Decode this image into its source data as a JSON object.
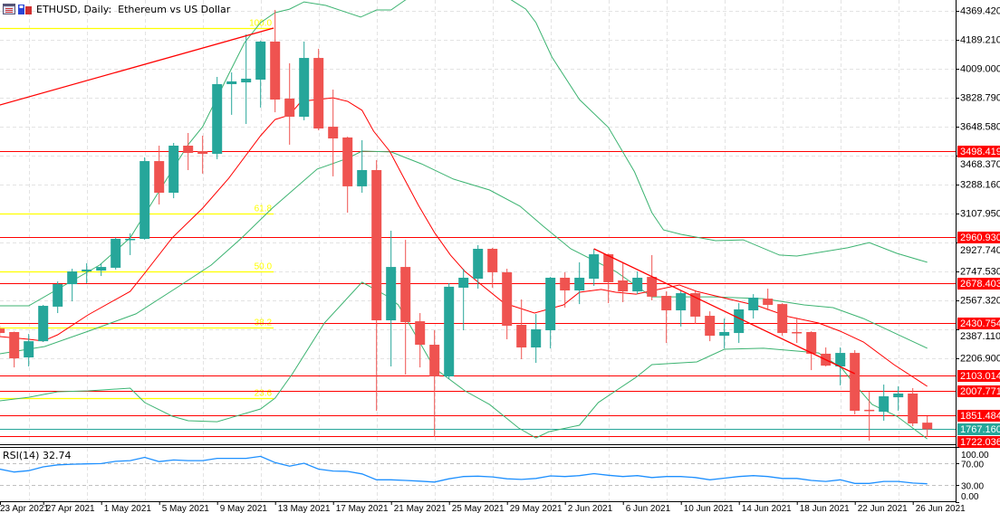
{
  "header": {
    "symbol_title": "ETHUSD, Daily:  Ethereum vs US Dollar",
    "icons": [
      "chart-window-icon",
      "save-icon"
    ]
  },
  "colors": {
    "bull": "#26a69a",
    "bear": "#ef5350",
    "bands": "#3cb371",
    "ma": "#ff0000",
    "fib": "#ffff00",
    "levels": "#ff0000",
    "current": "#26a69a",
    "rsi": "#1e90ff",
    "grid": "#e3e3e3"
  },
  "chart_data": {
    "type": "candlestick",
    "symbol": "ETHUSD",
    "timeframe": "Daily",
    "start_date": "2021-04-23",
    "interval": "1D",
    "ohlc": [
      [
        2394,
        2411,
        2344,
        2366
      ],
      [
        2372,
        2375,
        2152,
        2208
      ],
      [
        2214,
        2360,
        2158,
        2315
      ],
      [
        2315,
        2541,
        2310,
        2535
      ],
      [
        2530,
        2687,
        2490,
        2670
      ],
      [
        2670,
        2766,
        2563,
        2749
      ],
      [
        2749,
        2800,
        2676,
        2761
      ],
      [
        2755,
        2800,
        2721,
        2777
      ],
      [
        2772,
        2960,
        2761,
        2952
      ],
      [
        2946,
        2986,
        2851,
        2952
      ],
      [
        2952,
        3459,
        2946,
        3436
      ],
      [
        3436,
        3532,
        3166,
        3239
      ],
      [
        3239,
        3549,
        3205,
        3532
      ],
      [
        3532,
        3611,
        3380,
        3487
      ],
      [
        3498,
        3594,
        3358,
        3481
      ],
      [
        3481,
        3960,
        3448,
        3915
      ],
      [
        3915,
        3988,
        3724,
        3932
      ],
      [
        3926,
        4225,
        3667,
        3949
      ],
      [
        3943,
        4185,
        3769,
        4180
      ],
      [
        4180,
        4377,
        3740,
        3819
      ],
      [
        3825,
        4045,
        3538,
        3712
      ],
      [
        3712,
        4180,
        3690,
        4078
      ],
      [
        4078,
        4135,
        3628,
        3639
      ],
      [
        3650,
        3881,
        3341,
        3577
      ],
      [
        3583,
        3588,
        3115,
        3279
      ],
      [
        3279,
        3566,
        3239,
        3380
      ],
      [
        3380,
        3442,
        1882,
        2445
      ],
      [
        2445,
        3003,
        2158,
        2777
      ],
      [
        2777,
        2946,
        2107,
        2434
      ],
      [
        2439,
        2490,
        2152,
        2293
      ],
      [
        2293,
        2383,
        1719,
        2096
      ],
      [
        2096,
        2676,
        2079,
        2654
      ],
      [
        2648,
        2766,
        2383,
        2710
      ],
      [
        2704,
        2913,
        2642,
        2890
      ],
      [
        2890,
        2896,
        2648,
        2744
      ],
      [
        2744,
        2766,
        2327,
        2411
      ],
      [
        2417,
        2575,
        2203,
        2276
      ],
      [
        2276,
        2484,
        2180,
        2389
      ],
      [
        2383,
        2715,
        2270,
        2710
      ],
      [
        2710,
        2744,
        2524,
        2631
      ],
      [
        2631,
        2806,
        2546,
        2710
      ],
      [
        2704,
        2890,
        2659,
        2856
      ],
      [
        2856,
        2860,
        2552,
        2682
      ],
      [
        2693,
        2806,
        2558,
        2625
      ],
      [
        2625,
        2749,
        2608,
        2710
      ],
      [
        2715,
        2851,
        2569,
        2592
      ],
      [
        2597,
        2625,
        2304,
        2507
      ],
      [
        2507,
        2631,
        2406,
        2614
      ],
      [
        2614,
        2625,
        2422,
        2468
      ],
      [
        2473,
        2501,
        2315,
        2349
      ],
      [
        2349,
        2456,
        2270,
        2372
      ],
      [
        2366,
        2552,
        2304,
        2513
      ],
      [
        2507,
        2608,
        2456,
        2586
      ],
      [
        2580,
        2642,
        2507,
        2541
      ],
      [
        2546,
        2552,
        2349,
        2366
      ],
      [
        2372,
        2462,
        2304,
        2366
      ],
      [
        2372,
        2377,
        2135,
        2237
      ],
      [
        2237,
        2276,
        2158,
        2163
      ],
      [
        2158,
        2276,
        2040,
        2242
      ],
      [
        2242,
        2259,
        1859,
        1882
      ],
      [
        1888,
        2000,
        1696,
        1882
      ],
      [
        1876,
        2045,
        1820,
        1972
      ],
      [
        1966,
        2034,
        1882,
        1989
      ],
      [
        1989,
        2023,
        1786,
        1803
      ],
      [
        1808,
        1848,
        1719,
        1767.16
      ]
    ],
    "y_ticks": [
      "4369.420",
      "4189.210",
      "4009.000",
      "3828.790",
      "3648.580",
      "3468.370",
      "3288.160",
      "3107.950",
      "2927.740",
      "2747.530",
      "2567.320",
      "2387.110",
      "2206.900"
    ],
    "x_labels": [
      {
        "bar": 0,
        "text": "23 Apr 2021"
      },
      {
        "bar": 4,
        "text": "27 Apr 2021"
      },
      {
        "bar": 8,
        "text": "1 May 2021"
      },
      {
        "bar": 12,
        "text": "5 May 2021"
      },
      {
        "bar": 16,
        "text": "9 May 2021"
      },
      {
        "bar": 20,
        "text": "13 May 2021"
      },
      {
        "bar": 24,
        "text": "17 May 2021"
      },
      {
        "bar": 28,
        "text": "21 May 2021"
      },
      {
        "bar": 32,
        "text": "25 May 2021"
      },
      {
        "bar": 36,
        "text": "29 May 2021"
      },
      {
        "bar": 40,
        "text": "2 Jun 2021"
      },
      {
        "bar": 44,
        "text": "6 Jun 2021"
      },
      {
        "bar": 48,
        "text": "10 Jun 2021"
      },
      {
        "bar": 52,
        "text": "14 Jun 2021"
      },
      {
        "bar": 56,
        "text": "18 Jun 2021"
      },
      {
        "bar": 60,
        "text": "22 Jun 2021"
      },
      {
        "bar": 64,
        "text": "26 Jun 2021"
      }
    ],
    "levels": [
      {
        "value": 3498.419,
        "label": "3498.419"
      },
      {
        "value": 2960.93,
        "label": "2960.930"
      },
      {
        "value": 2678.403,
        "label": "2678.403"
      },
      {
        "value": 2430.754,
        "label": "2430.754"
      },
      {
        "value": 2103.014,
        "label": "2103.014"
      },
      {
        "value": 2007.771,
        "label": "2007.771"
      },
      {
        "value": 1851.484,
        "label": "1851.484"
      },
      {
        "value": 1722.036,
        "label": "1722.036"
      }
    ],
    "current_price": {
      "value": 1767.16,
      "label": "1767.160"
    },
    "fibonacci": {
      "end_bar": 18.9,
      "levels": [
        {
          "value": 4264,
          "label": "100.0"
        },
        {
          "value": 3110,
          "label": "61.8"
        },
        {
          "value": 2749,
          "label": "50.0"
        },
        {
          "value": 2400,
          "label": "38.2"
        },
        {
          "value": 1961,
          "label": "23.6"
        }
      ]
    },
    "trendlines": [
      {
        "from": [
          0,
          3785
        ],
        "to": [
          18.9,
          4264
        ]
      },
      {
        "from": [
          41,
          2890
        ],
        "to": [
          59,
          2113
        ]
      }
    ],
    "bollinger_upper": [
      [
        0,
        2535
      ],
      [
        2,
        2535
      ],
      [
        6.9,
        2789
      ],
      [
        9,
        2958
      ],
      [
        10,
        3104
      ],
      [
        13,
        3538
      ],
      [
        14,
        3650
      ],
      [
        15.8,
        3977
      ],
      [
        16.9,
        4174
      ],
      [
        18,
        4298
      ],
      [
        19,
        4360
      ],
      [
        20,
        4382
      ],
      [
        21,
        4427
      ],
      [
        22.5,
        4405
      ],
      [
        24.9,
        4332
      ],
      [
        26,
        4377
      ],
      [
        27,
        4377
      ],
      [
        28,
        4439
      ],
      [
        30,
        4520
      ],
      [
        32,
        4540
      ],
      [
        34,
        4510
      ],
      [
        35.3,
        4439
      ],
      [
        36.3,
        4382
      ],
      [
        37,
        4298
      ],
      [
        38.1,
        4084
      ],
      [
        40,
        3819
      ],
      [
        42,
        3645
      ],
      [
        43.8,
        3369
      ],
      [
        45,
        3115
      ],
      [
        45.8,
        3008
      ],
      [
        47,
        2980
      ],
      [
        49.4,
        2941
      ],
      [
        51.3,
        2946
      ],
      [
        53.8,
        2851
      ],
      [
        55,
        2845
      ],
      [
        58.5,
        2896
      ],
      [
        60,
        2929
      ],
      [
        61.9,
        2862
      ],
      [
        64,
        2806
      ]
    ],
    "bollinger_middle": [
      [
        0,
        2237
      ],
      [
        3.1,
        2282
      ],
      [
        6.3,
        2383
      ],
      [
        9.4,
        2485
      ],
      [
        12.5,
        2665
      ],
      [
        14.6,
        2789
      ],
      [
        16.7,
        2958
      ],
      [
        18.8,
        3143
      ],
      [
        21.9,
        3386
      ],
      [
        24,
        3453
      ],
      [
        25,
        3498
      ],
      [
        27,
        3493
      ],
      [
        29.1,
        3419
      ],
      [
        31.3,
        3324
      ],
      [
        33.8,
        3256
      ],
      [
        35.9,
        3155
      ],
      [
        37.5,
        3031
      ],
      [
        39.4,
        2890
      ],
      [
        42.5,
        2749
      ],
      [
        45,
        2591
      ],
      [
        49.2,
        2591
      ],
      [
        52.7,
        2580
      ],
      [
        55.5,
        2541
      ],
      [
        57.5,
        2524
      ],
      [
        59.6,
        2456
      ],
      [
        64,
        2271
      ]
    ],
    "bollinger_lower": [
      [
        0,
        1944
      ],
      [
        2,
        1966
      ],
      [
        4,
        2000
      ],
      [
        6.1,
        2006
      ],
      [
        9,
        2023
      ],
      [
        10,
        1933
      ],
      [
        11.9,
        1848
      ],
      [
        13,
        1820
      ],
      [
        15,
        1814
      ],
      [
        18,
        1893
      ],
      [
        19,
        1961
      ],
      [
        20.2,
        2113
      ],
      [
        22.4,
        2428
      ],
      [
        25,
        2682
      ],
      [
        26.7,
        2597
      ],
      [
        27.5,
        2541
      ],
      [
        30,
        2147
      ],
      [
        32.1,
        2006
      ],
      [
        33.8,
        1921
      ],
      [
        35.8,
        1775
      ],
      [
        37,
        1713
      ],
      [
        37.9,
        1752
      ],
      [
        40,
        1792
      ],
      [
        41.3,
        1933
      ],
      [
        42.5,
        2006
      ],
      [
        43.9,
        2090
      ],
      [
        45,
        2169
      ],
      [
        48.1,
        2186
      ],
      [
        50,
        2265
      ],
      [
        52.7,
        2271
      ],
      [
        56.5,
        2242
      ],
      [
        58.1,
        2147
      ],
      [
        58.9,
        2056
      ],
      [
        60.2,
        1921
      ],
      [
        61.9,
        1848
      ],
      [
        64,
        1707
      ]
    ],
    "moving_average": [
      [
        0,
        2344
      ],
      [
        2,
        2327
      ],
      [
        3,
        2316
      ],
      [
        4,
        2355
      ],
      [
        6.1,
        2479
      ],
      [
        9,
        2625
      ],
      [
        10,
        2738
      ],
      [
        11.9,
        2958
      ],
      [
        14,
        3143
      ],
      [
        15.8,
        3329
      ],
      [
        18,
        3594
      ],
      [
        19,
        3695
      ],
      [
        20,
        3723
      ],
      [
        20.8,
        3808
      ],
      [
        23,
        3830
      ],
      [
        24,
        3808
      ],
      [
        25,
        3752
      ],
      [
        25.8,
        3622
      ],
      [
        26.9,
        3498
      ],
      [
        27.9,
        3329
      ],
      [
        28.9,
        3160
      ],
      [
        30,
        2991
      ],
      [
        31.1,
        2851
      ],
      [
        32.1,
        2749
      ],
      [
        34.8,
        2552
      ],
      [
        36.9,
        2490
      ],
      [
        38.9,
        2541
      ],
      [
        40,
        2620
      ],
      [
        41.5,
        2637
      ],
      [
        42.5,
        2620
      ],
      [
        43.9,
        2608
      ],
      [
        46.9,
        2665
      ],
      [
        48.1,
        2625
      ],
      [
        50.2,
        2580
      ],
      [
        52.3,
        2535
      ],
      [
        54.4,
        2468
      ],
      [
        56.5,
        2428
      ],
      [
        58,
        2377
      ],
      [
        59.6,
        2310
      ],
      [
        61.7,
        2169
      ],
      [
        64,
        2034
      ]
    ]
  },
  "rsi": {
    "label": "RSI(14) 32.74",
    "period": 14,
    "current": 32.74,
    "levels": [
      70,
      30
    ],
    "ticks": [
      "100.00",
      "70.00",
      "30.00",
      "0.00"
    ],
    "values": [
      59.4,
      54.1,
      56.5,
      63.5,
      67,
      68.2,
      68.8,
      69.4,
      73.5,
      74.7,
      80.6,
      73,
      75.9,
      74.7,
      74.7,
      78.8,
      78.8,
      78.8,
      82.4,
      71.2,
      64.7,
      70,
      59.4,
      55.9,
      55.3,
      50.6,
      40,
      40,
      38.8,
      37.6,
      35.9,
      41.8,
      45.9,
      46.5,
      45.3,
      41.8,
      40.6,
      42.4,
      47,
      45.9,
      47.6,
      51.2,
      48.2,
      45.9,
      47.6,
      44.1,
      45.9,
      45.9,
      44.1,
      40,
      42.9,
      45.9,
      47.6,
      45.9,
      42.4,
      42.4,
      38.8,
      37.1,
      40,
      33.5,
      33.5,
      37.1,
      37.1,
      34.1,
      32.74
    ]
  }
}
